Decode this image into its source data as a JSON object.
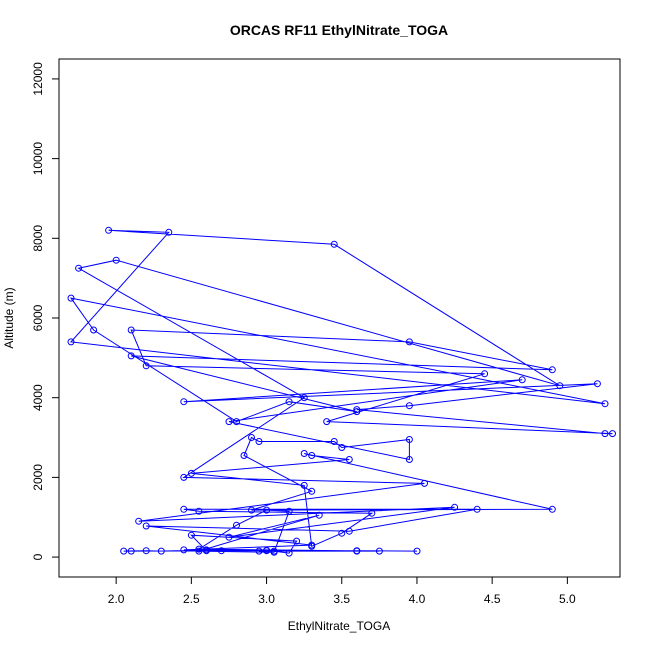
{
  "chart_data": {
    "type": "line",
    "title": "ORCAS RF11 EthylNitrate_TOGA",
    "xlabel": "EthylNitrate_TOGA",
    "ylabel": "Altitude (m)",
    "xlim": [
      1.62,
      5.35
    ],
    "ylim": [
      -500,
      12500
    ],
    "x_ticks": [
      2.0,
      2.5,
      3.0,
      3.5,
      4.0,
      4.5,
      5.0
    ],
    "x_tick_labels": [
      "2.0",
      "2.5",
      "3.0",
      "3.5",
      "4.0",
      "4.5",
      "5.0"
    ],
    "y_ticks": [
      0,
      2000,
      4000,
      6000,
      8000,
      10000,
      12000
    ],
    "y_tick_labels": [
      "0",
      "2000",
      "4000",
      "6000",
      "8000",
      "10000",
      "12000"
    ],
    "grid": false,
    "series": [
      {
        "color": "#0000ff",
        "points": [
          [
            4.0,
            150
          ],
          [
            2.6,
            180
          ],
          [
            2.3,
            150
          ],
          [
            2.2,
            160
          ],
          [
            2.05,
            150
          ],
          [
            2.1,
            150
          ],
          [
            3.0,
            160
          ],
          [
            3.05,
            150
          ],
          [
            3.6,
            160
          ],
          [
            2.6,
            160
          ],
          [
            2.5,
            550
          ],
          [
            3.2,
            400
          ],
          [
            3.15,
            100
          ],
          [
            3.0,
            170
          ],
          [
            2.7,
            160
          ],
          [
            2.45,
            180
          ],
          [
            3.3,
            300
          ],
          [
            2.2,
            780
          ],
          [
            3.55,
            650
          ],
          [
            4.4,
            1200
          ],
          [
            2.45,
            1200
          ],
          [
            2.55,
            1150
          ],
          [
            3.7,
            1100
          ],
          [
            3.5,
            600
          ],
          [
            3.3,
            270
          ],
          [
            3.25,
            1800
          ],
          [
            2.5,
            2100
          ],
          [
            3.55,
            2450
          ],
          [
            3.3,
            2550
          ],
          [
            3.25,
            2600
          ],
          [
            4.9,
            1200
          ],
          [
            2.9,
            1180
          ],
          [
            3.3,
            1650
          ],
          [
            2.85,
            2550
          ],
          [
            2.9,
            3000
          ],
          [
            2.95,
            2900
          ],
          [
            3.45,
            2900
          ],
          [
            3.5,
            2750
          ],
          [
            3.95,
            2950
          ],
          [
            3.95,
            2450
          ],
          [
            2.75,
            3400
          ],
          [
            4.7,
            4450
          ],
          [
            2.45,
            3900
          ],
          [
            5.2,
            4350
          ],
          [
            3.95,
            3800
          ],
          [
            3.6,
            3700
          ],
          [
            5.25,
            3100
          ],
          [
            5.3,
            3100
          ],
          [
            3.4,
            3400
          ],
          [
            4.45,
            4600
          ],
          [
            2.2,
            4800
          ],
          [
            2.1,
            5700
          ],
          [
            3.95,
            5400
          ],
          [
            4.9,
            4700
          ],
          [
            2.1,
            5050
          ],
          [
            3.6,
            3650
          ],
          [
            3.15,
            3900
          ],
          [
            2.8,
            3400
          ],
          [
            1.85,
            5700
          ],
          [
            1.7,
            6500
          ],
          [
            5.25,
            3850
          ],
          [
            1.7,
            5400
          ],
          [
            2.35,
            8150
          ],
          [
            1.95,
            8200
          ],
          [
            3.45,
            7850
          ],
          [
            4.95,
            4300
          ],
          [
            2.0,
            7450
          ],
          [
            1.75,
            7250
          ],
          [
            3.25,
            4000
          ],
          [
            2.45,
            2000
          ],
          [
            4.05,
            1850
          ],
          [
            2.15,
            900
          ],
          [
            4.25,
            1250
          ],
          [
            2.75,
            500
          ],
          [
            3.35,
            1050
          ],
          [
            2.55,
            150
          ],
          [
            3.05,
            120
          ],
          [
            3.15,
            1150
          ],
          [
            3.0,
            1180
          ],
          [
            2.8,
            800
          ],
          [
            2.55,
            200
          ],
          [
            3.75,
            150
          ],
          [
            3.6,
            150
          ],
          [
            2.95,
            150
          ]
        ]
      }
    ]
  }
}
